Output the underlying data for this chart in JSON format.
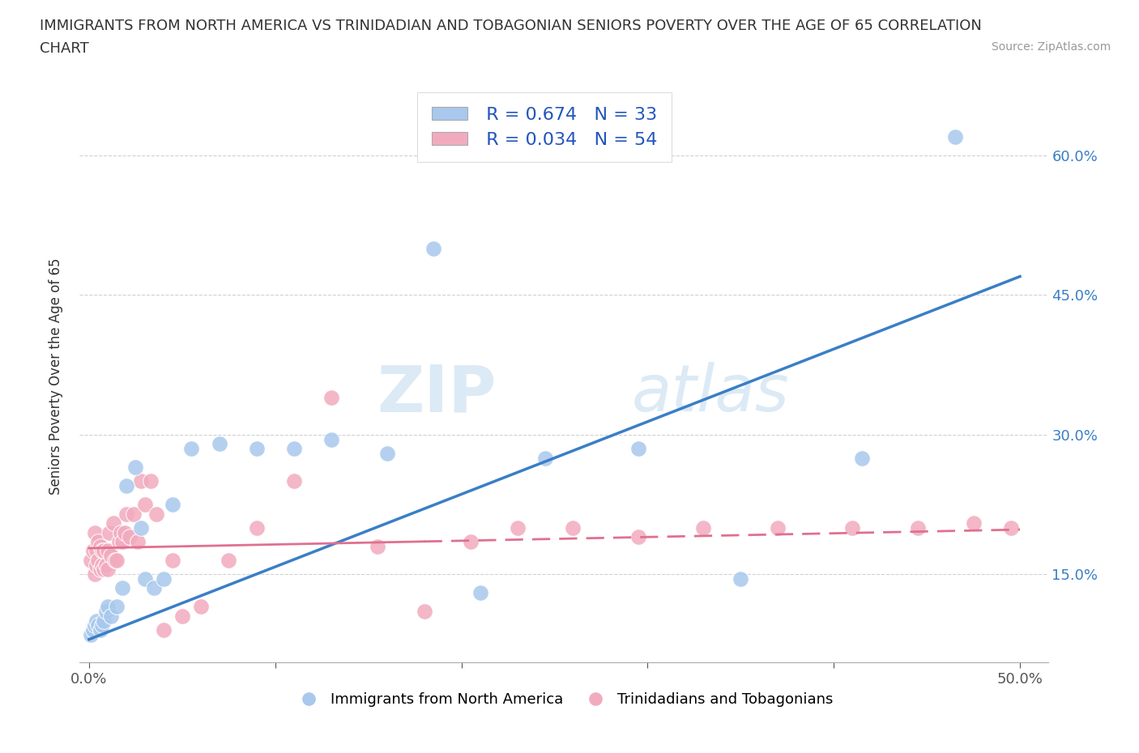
{
  "title_line1": "IMMIGRANTS FROM NORTH AMERICA VS TRINIDADIAN AND TOBAGONIAN SENIORS POVERTY OVER THE AGE OF 65 CORRELATION",
  "title_line2": "CHART",
  "source_text": "Source: ZipAtlas.com",
  "ylabel": "Seniors Poverty Over the Age of 65",
  "xlim": [
    -0.005,
    0.515
  ],
  "ylim": [
    0.055,
    0.67
  ],
  "xticks": [
    0.0,
    0.1,
    0.2,
    0.3,
    0.4,
    0.5
  ],
  "xticklabels": [
    "0.0%",
    "",
    "",
    "",
    "",
    "50.0%"
  ],
  "yticks": [
    0.15,
    0.3,
    0.45,
    0.6
  ],
  "yticklabels": [
    "15.0%",
    "30.0%",
    "45.0%",
    "60.0%"
  ],
  "watermark_zip": "ZIP",
  "watermark_atlas": "atlas",
  "legend_r1": "R = 0.674",
  "legend_n1": "N = 33",
  "legend_r2": "R = 0.034",
  "legend_n2": "N = 54",
  "blue_color": "#A8C8ED",
  "pink_color": "#F2ABBE",
  "blue_line_color": "#3A7EC6",
  "pink_line_color": "#E07090",
  "background_color": "#FFFFFF",
  "blue_line_x0": 0.0,
  "blue_line_y0": 0.08,
  "blue_line_x1": 0.5,
  "blue_line_y1": 0.47,
  "pink_line_x0": 0.0,
  "pink_line_y0": 0.178,
  "pink_line_x1": 0.5,
  "pink_line_y1": 0.198,
  "blue_scatter_x": [
    0.001,
    0.002,
    0.003,
    0.004,
    0.005,
    0.006,
    0.007,
    0.008,
    0.009,
    0.01,
    0.012,
    0.015,
    0.018,
    0.02,
    0.025,
    0.028,
    0.03,
    0.035,
    0.04,
    0.045,
    0.055,
    0.07,
    0.09,
    0.11,
    0.13,
    0.16,
    0.185,
    0.21,
    0.245,
    0.295,
    0.35,
    0.415,
    0.465
  ],
  "blue_scatter_y": [
    0.085,
    0.09,
    0.095,
    0.1,
    0.095,
    0.09,
    0.095,
    0.1,
    0.11,
    0.115,
    0.105,
    0.115,
    0.135,
    0.245,
    0.265,
    0.2,
    0.145,
    0.135,
    0.145,
    0.225,
    0.285,
    0.29,
    0.285,
    0.285,
    0.295,
    0.28,
    0.5,
    0.13,
    0.275,
    0.285,
    0.145,
    0.275,
    0.62
  ],
  "pink_scatter_x": [
    0.001,
    0.002,
    0.003,
    0.003,
    0.004,
    0.004,
    0.005,
    0.005,
    0.006,
    0.006,
    0.007,
    0.007,
    0.008,
    0.008,
    0.009,
    0.01,
    0.01,
    0.011,
    0.012,
    0.013,
    0.014,
    0.015,
    0.016,
    0.017,
    0.018,
    0.019,
    0.02,
    0.022,
    0.024,
    0.026,
    0.028,
    0.03,
    0.033,
    0.036,
    0.04,
    0.045,
    0.05,
    0.06,
    0.075,
    0.09,
    0.11,
    0.13,
    0.155,
    0.18,
    0.205,
    0.23,
    0.26,
    0.295,
    0.33,
    0.37,
    0.41,
    0.445,
    0.475,
    0.495
  ],
  "pink_scatter_y": [
    0.165,
    0.175,
    0.15,
    0.195,
    0.16,
    0.175,
    0.165,
    0.185,
    0.155,
    0.18,
    0.16,
    0.175,
    0.155,
    0.175,
    0.16,
    0.155,
    0.175,
    0.195,
    0.17,
    0.205,
    0.165,
    0.165,
    0.185,
    0.195,
    0.185,
    0.195,
    0.215,
    0.19,
    0.215,
    0.185,
    0.25,
    0.225,
    0.25,
    0.215,
    0.09,
    0.165,
    0.105,
    0.115,
    0.165,
    0.2,
    0.25,
    0.34,
    0.18,
    0.11,
    0.185,
    0.2,
    0.2,
    0.19,
    0.2,
    0.2,
    0.2,
    0.2,
    0.205,
    0.2
  ]
}
